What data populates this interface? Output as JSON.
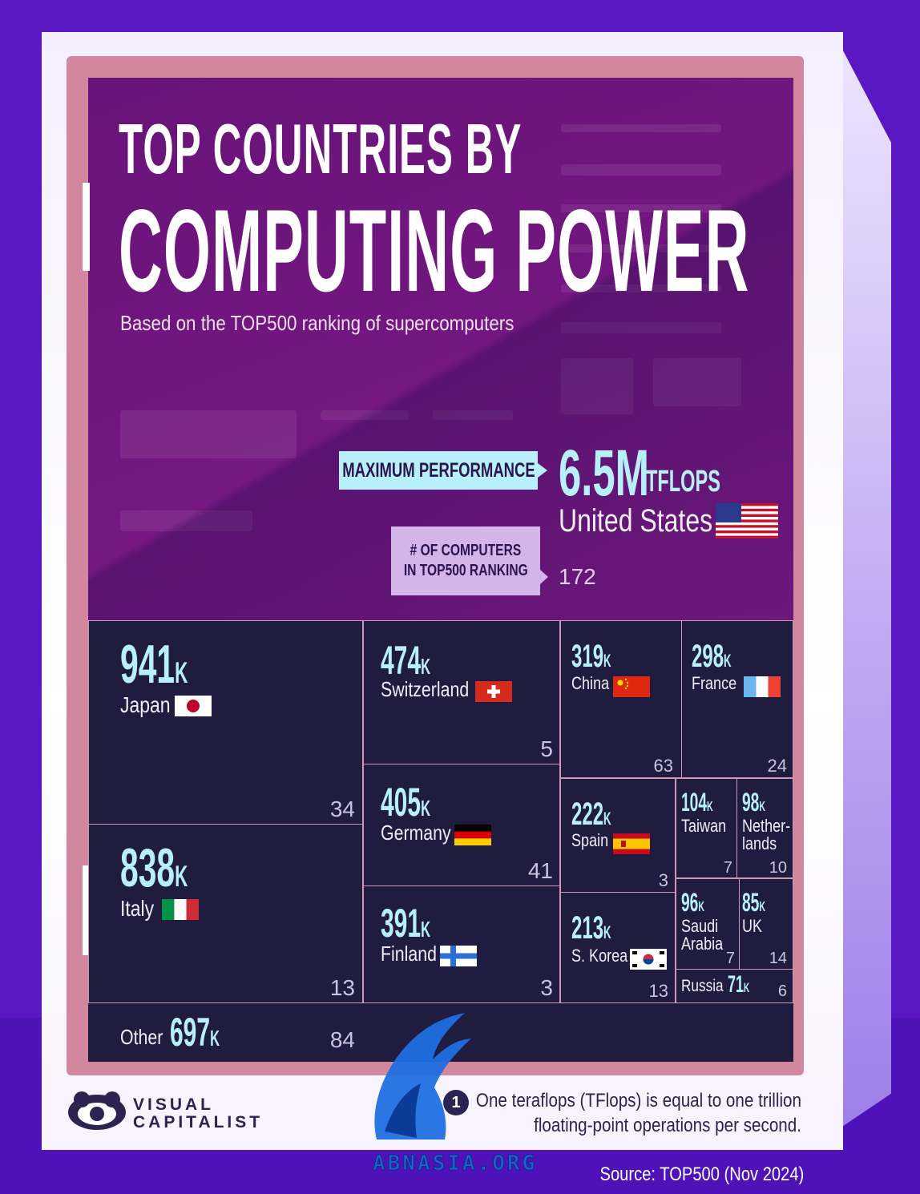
{
  "title_line1": "TOP COUNTRIES BY",
  "title_line2": "COMPUTING POWER",
  "subtitle": "Based on the TOP500 ranking of supercomputers",
  "max_performance_label": "MAXIMUM PERFORMANCE",
  "computers_label_line1": "# OF COMPUTERS",
  "computers_label_line2": "IN TOP500 RANKING",
  "leader": {
    "value": "6.5M",
    "unit": "TFLOPS",
    "country": "United States",
    "computers": "172"
  },
  "chart_data": {
    "type": "treemap",
    "unit": "TFLOPS",
    "leader": {
      "country": "United States",
      "value": "6.5M",
      "computers": 172
    },
    "items": [
      {
        "country": "Japan",
        "value": "941",
        "suffix": "K",
        "computers": "34"
      },
      {
        "country": "Italy",
        "value": "838",
        "suffix": "K",
        "computers": "13"
      },
      {
        "country": "Switzerland",
        "value": "474",
        "suffix": "K",
        "computers": "5"
      },
      {
        "country": "Germany",
        "value": "405",
        "suffix": "K",
        "computers": "41"
      },
      {
        "country": "Finland",
        "value": "391",
        "suffix": "K",
        "computers": "3"
      },
      {
        "country": "China",
        "value": "319",
        "suffix": "K",
        "computers": "63"
      },
      {
        "country": "France",
        "value": "298",
        "suffix": "K",
        "computers": "24"
      },
      {
        "country": "Spain",
        "value": "222",
        "suffix": "K",
        "computers": "3"
      },
      {
        "country": "S. Korea",
        "value": "213",
        "suffix": "K",
        "computers": "13"
      },
      {
        "country": "Taiwan",
        "value": "104",
        "suffix": "K",
        "computers": "7"
      },
      {
        "country": "Nether-\nlands",
        "value": "98",
        "suffix": "K",
        "computers": "10"
      },
      {
        "country": "Saudi\nArabia",
        "value": "96",
        "suffix": "K",
        "computers": "7"
      },
      {
        "country": "UK",
        "value": "85",
        "suffix": "K",
        "computers": "14"
      },
      {
        "country": "Russia",
        "value": "71",
        "suffix": "K",
        "computers": "6"
      },
      {
        "country": "Other",
        "value": "697",
        "suffix": "K",
        "computers": "84"
      }
    ]
  },
  "brand": {
    "line1": "VISUAL",
    "line2": "CAPITALIST"
  },
  "footnote_number": "1",
  "footnote_line1": "One teraflops (TFlops) is equal to one trillion",
  "footnote_line2": "floating-point operations per second.",
  "source": "Source: TOP500 (Nov 2024)",
  "watermark": "ABNASIA.ORG",
  "colors": {
    "accent": "#b7f0fa",
    "panel": "#7b1a85",
    "treemap_bg": "#1f1c3f",
    "background": "#5a17c4"
  }
}
